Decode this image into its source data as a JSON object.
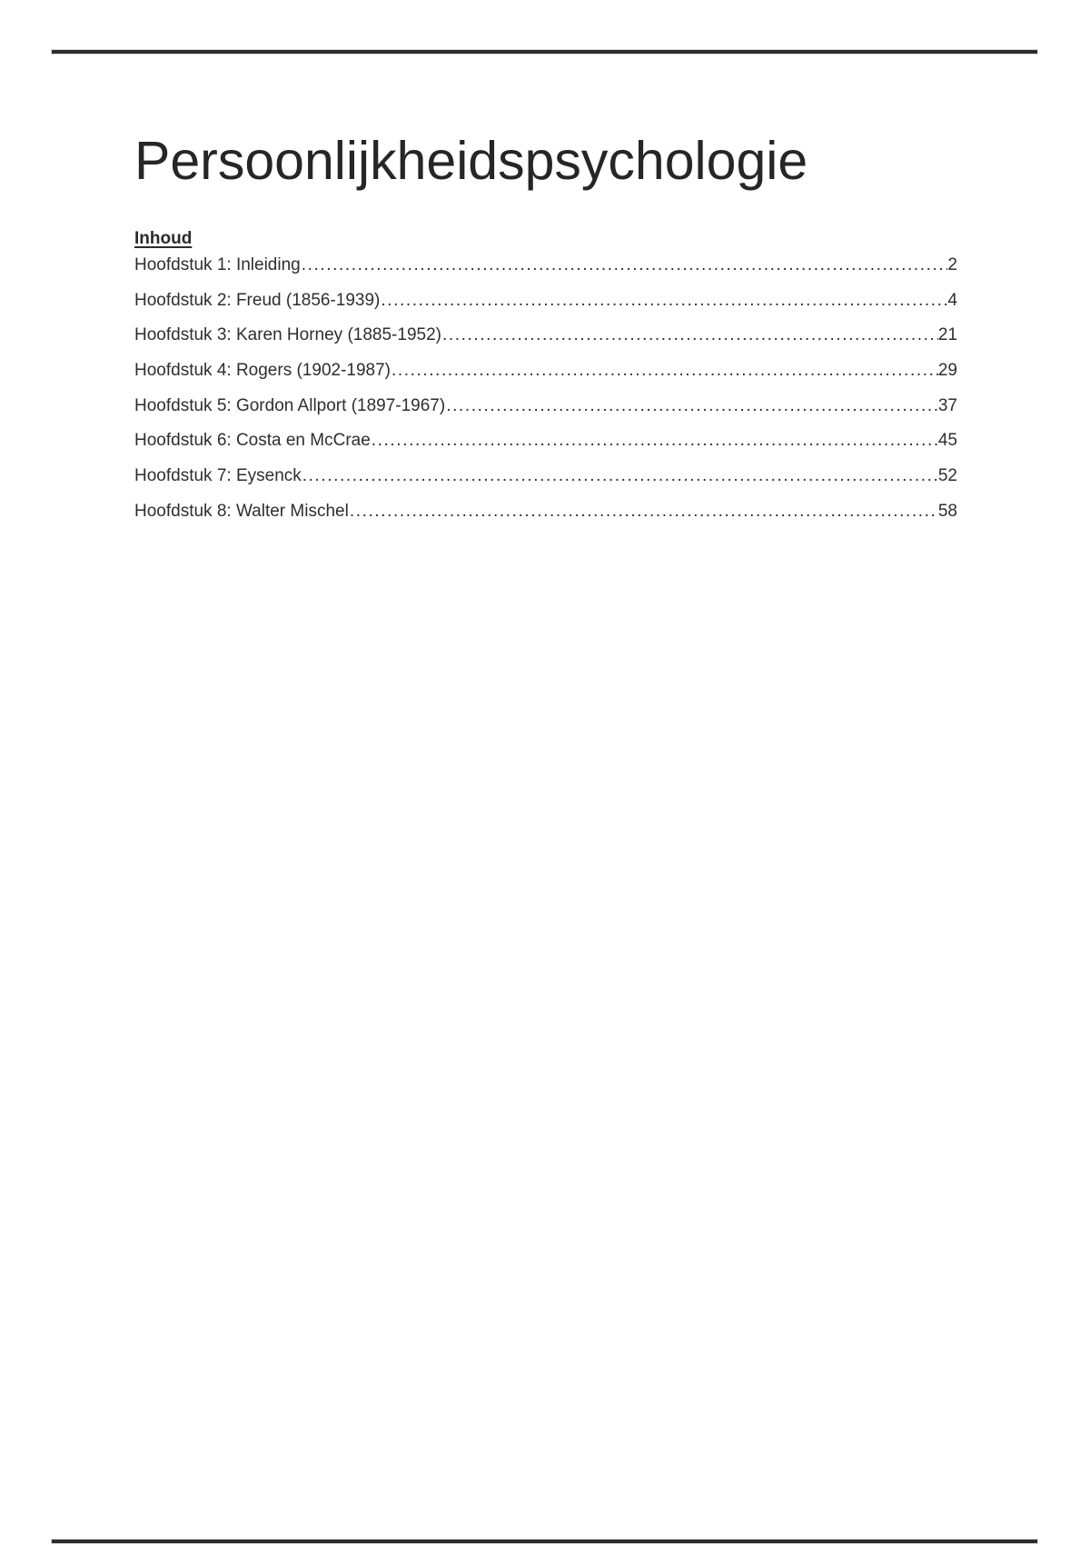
{
  "document": {
    "title": "Persoonlijkheidspsychologie",
    "toc_heading": "Inhoud",
    "toc_entries": [
      {
        "label": "Hoofdstuk 1: Inleiding",
        "page": "2"
      },
      {
        "label": "Hoofdstuk 2: Freud (1856-1939)",
        "page": "4"
      },
      {
        "label": "Hoofdstuk 3: Karen Horney (1885-1952)",
        "page": "21"
      },
      {
        "label": "Hoofdstuk 4: Rogers (1902-1987)",
        "page": "29"
      },
      {
        "label": "Hoofdstuk 5: Gordon Allport (1897-1967)",
        "page": "37"
      },
      {
        "label": "Hoofdstuk 6: Costa en McCrae",
        "page": "45"
      },
      {
        "label": "Hoofdstuk 7: Eysenck",
        "page": "52"
      },
      {
        "label": "Hoofdstuk 8: Walter Mischel",
        "page": "58"
      }
    ]
  },
  "colors": {
    "text": "#2b2b2b",
    "title_text": "#262626",
    "rule": "#2d2d2d",
    "background": "#ffffff"
  }
}
